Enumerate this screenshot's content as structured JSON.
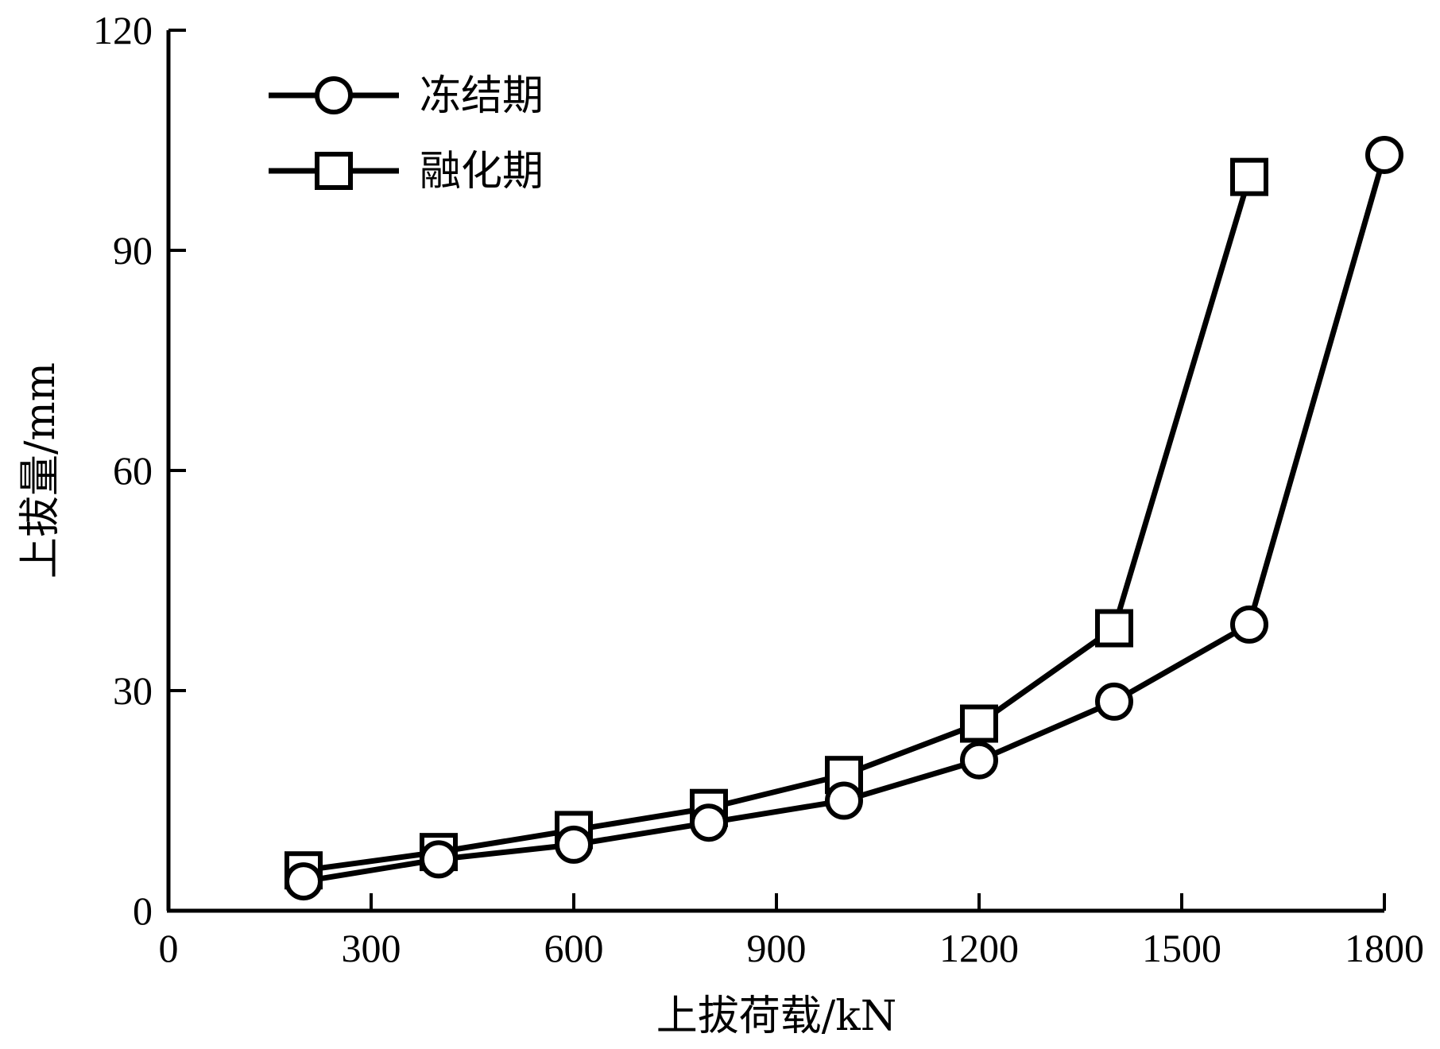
{
  "chart_data": {
    "type": "line",
    "title": "",
    "xlabel": "上拔荷载/kN",
    "ylabel": "上拔量/mm",
    "xlim": [
      0,
      1800
    ],
    "ylim": [
      0,
      120
    ],
    "xticks": [
      0,
      300,
      600,
      900,
      1200,
      1500,
      1800
    ],
    "yticks": [
      0,
      30,
      60,
      90,
      120
    ],
    "xtick_labels": [
      "0",
      "300",
      "600",
      "900",
      "1200",
      "1500",
      "1800"
    ],
    "ytick_labels": [
      "0",
      "30",
      "60",
      "90",
      "120"
    ],
    "grid": false,
    "legend_position": "top-left",
    "series": [
      {
        "name": "冻结期",
        "marker": "circle",
        "color": "#000000",
        "x": [
          200,
          400,
          600,
          800,
          1000,
          1200,
          1400,
          1600,
          1800
        ],
        "y": [
          4,
          7,
          9,
          12,
          15,
          20.5,
          28.5,
          39,
          103
        ]
      },
      {
        "name": "融化期",
        "marker": "square",
        "color": "#000000",
        "x": [
          200,
          400,
          600,
          800,
          1000,
          1200,
          1400,
          1600
        ],
        "y": [
          5.5,
          8,
          11,
          14,
          18.5,
          25.5,
          38.5,
          100
        ]
      }
    ]
  }
}
